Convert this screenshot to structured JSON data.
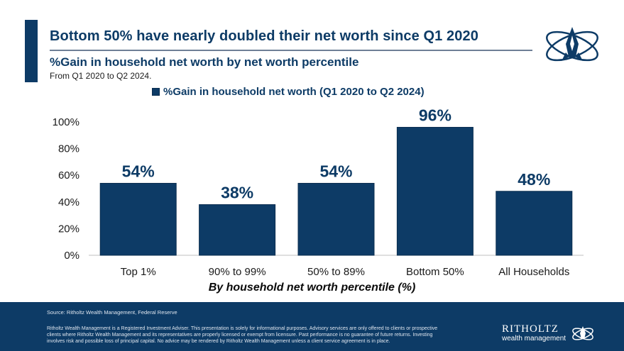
{
  "headline": "Bottom 50% have nearly doubled their net worth since Q1 2020",
  "subtitle": "%Gain in household net worth by net worth percentile",
  "date_range": "From Q1 2020 to Q2 2024.",
  "legend": {
    "label": "%Gain in household net worth (Q1 2020 to Q2 2024)"
  },
  "footer": {
    "source": "Source: Ritholtz Wealth Management, Federal Reserve",
    "disclaimer": "Ritholtz Wealth Management is a Registered Investment Adviser. This presentation is solely for informational purposes. Advisory services are only offered to clients or prospective clients where Ritholtz Wealth Management and its representatives are properly licensed or exempt from licensure. Past performance is no guarantee of future returns. Investing involves risk and possible loss of principal capital. No advice may be rendered by Ritholtz Wealth Management unless a client service agreement is in place.",
    "brand_name": "RITHOLTZ",
    "brand_sub": "wealth management"
  },
  "colors": {
    "bar": "#0d3b66",
    "accent": "#0d3b66",
    "footer_bg": "#0d3b66"
  },
  "chart_data": {
    "type": "bar",
    "categories": [
      "Top 1%",
      "90% to 99%",
      "50% to 89%",
      "Bottom 50%",
      "All Households"
    ],
    "series": [
      {
        "name": "%Gain in household net worth (Q1 2020 to Q2 2024)",
        "values": [
          54,
          38,
          54,
          96,
          48
        ]
      }
    ],
    "data_labels": [
      "54%",
      "38%",
      "54%",
      "96%",
      "48%"
    ],
    "xlabel": "By household net worth percentile (%)",
    "ylabel": "",
    "ylim": [
      0,
      100
    ],
    "yticks": [
      0,
      20,
      40,
      60,
      80,
      100
    ],
    "ytick_labels": [
      "0%",
      "20%",
      "40%",
      "60%",
      "80%",
      "100%"
    ],
    "grid": false,
    "legend_position": "top"
  }
}
